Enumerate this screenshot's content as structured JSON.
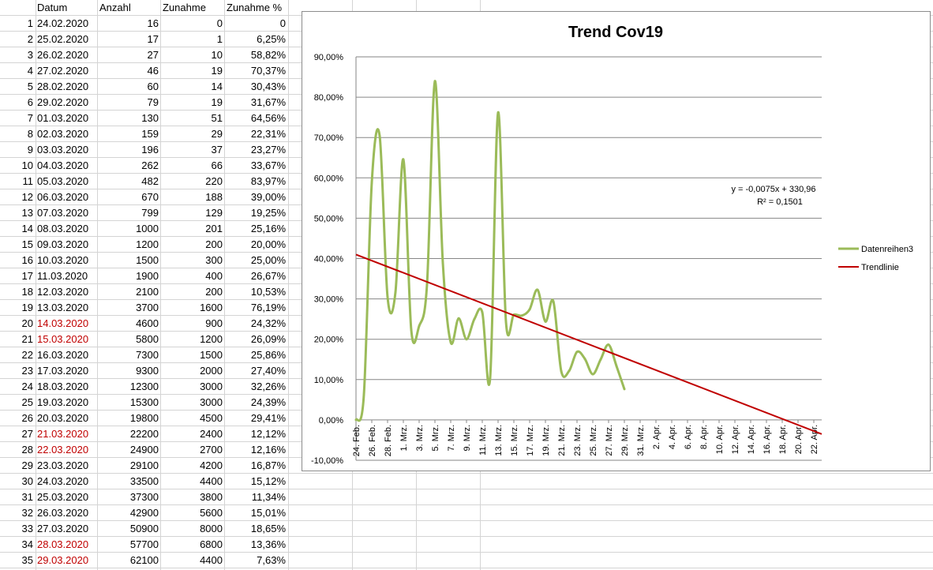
{
  "sheet": {
    "headers": [
      "Datum",
      "Anzahl",
      "Zunahme",
      "Zunahme %"
    ],
    "rows": [
      {
        "n": "1",
        "date": "24.02.2020",
        "count": "16",
        "inc": "0",
        "pct": "0",
        "weekend": false
      },
      {
        "n": "2",
        "date": "25.02.2020",
        "count": "17",
        "inc": "1",
        "pct": "6,25%",
        "weekend": false
      },
      {
        "n": "3",
        "date": "26.02.2020",
        "count": "27",
        "inc": "10",
        "pct": "58,82%",
        "weekend": false
      },
      {
        "n": "4",
        "date": "27.02.2020",
        "count": "46",
        "inc": "19",
        "pct": "70,37%",
        "weekend": false
      },
      {
        "n": "5",
        "date": "28.02.2020",
        "count": "60",
        "inc": "14",
        "pct": "30,43%",
        "weekend": false
      },
      {
        "n": "6",
        "date": "29.02.2020",
        "count": "79",
        "inc": "19",
        "pct": "31,67%",
        "weekend": false
      },
      {
        "n": "7",
        "date": "01.03.2020",
        "count": "130",
        "inc": "51",
        "pct": "64,56%",
        "weekend": false
      },
      {
        "n": "8",
        "date": "02.03.2020",
        "count": "159",
        "inc": "29",
        "pct": "22,31%",
        "weekend": false
      },
      {
        "n": "9",
        "date": "03.03.2020",
        "count": "196",
        "inc": "37",
        "pct": "23,27%",
        "weekend": false
      },
      {
        "n": "10",
        "date": "04.03.2020",
        "count": "262",
        "inc": "66",
        "pct": "33,67%",
        "weekend": false
      },
      {
        "n": "11",
        "date": "05.03.2020",
        "count": "482",
        "inc": "220",
        "pct": "83,97%",
        "weekend": false
      },
      {
        "n": "12",
        "date": "06.03.2020",
        "count": "670",
        "inc": "188",
        "pct": "39,00%",
        "weekend": false
      },
      {
        "n": "13",
        "date": "07.03.2020",
        "count": "799",
        "inc": "129",
        "pct": "19,25%",
        "weekend": false
      },
      {
        "n": "14",
        "date": "08.03.2020",
        "count": "1000",
        "inc": "201",
        "pct": "25,16%",
        "weekend": false
      },
      {
        "n": "15",
        "date": "09.03.2020",
        "count": "1200",
        "inc": "200",
        "pct": "20,00%",
        "weekend": false
      },
      {
        "n": "16",
        "date": "10.03.2020",
        "count": "1500",
        "inc": "300",
        "pct": "25,00%",
        "weekend": false
      },
      {
        "n": "17",
        "date": "11.03.2020",
        "count": "1900",
        "inc": "400",
        "pct": "26,67%",
        "weekend": false
      },
      {
        "n": "18",
        "date": "12.03.2020",
        "count": "2100",
        "inc": "200",
        "pct": "10,53%",
        "weekend": false
      },
      {
        "n": "19",
        "date": "13.03.2020",
        "count": "3700",
        "inc": "1600",
        "pct": "76,19%",
        "weekend": false
      },
      {
        "n": "20",
        "date": "14.03.2020",
        "count": "4600",
        "inc": "900",
        "pct": "24,32%",
        "weekend": true
      },
      {
        "n": "21",
        "date": "15.03.2020",
        "count": "5800",
        "inc": "1200",
        "pct": "26,09%",
        "weekend": true
      },
      {
        "n": "22",
        "date": "16.03.2020",
        "count": "7300",
        "inc": "1500",
        "pct": "25,86%",
        "weekend": false
      },
      {
        "n": "23",
        "date": "17.03.2020",
        "count": "9300",
        "inc": "2000",
        "pct": "27,40%",
        "weekend": false
      },
      {
        "n": "24",
        "date": "18.03.2020",
        "count": "12300",
        "inc": "3000",
        "pct": "32,26%",
        "weekend": false
      },
      {
        "n": "25",
        "date": "19.03.2020",
        "count": "15300",
        "inc": "3000",
        "pct": "24,39%",
        "weekend": false
      },
      {
        "n": "26",
        "date": "20.03.2020",
        "count": "19800",
        "inc": "4500",
        "pct": "29,41%",
        "weekend": false
      },
      {
        "n": "27",
        "date": "21.03.2020",
        "count": "22200",
        "inc": "2400",
        "pct": "12,12%",
        "weekend": true
      },
      {
        "n": "28",
        "date": "22.03.2020",
        "count": "24900",
        "inc": "2700",
        "pct": "12,16%",
        "weekend": true
      },
      {
        "n": "29",
        "date": "23.03.2020",
        "count": "29100",
        "inc": "4200",
        "pct": "16,87%",
        "weekend": false
      },
      {
        "n": "30",
        "date": "24.03.2020",
        "count": "33500",
        "inc": "4400",
        "pct": "15,12%",
        "weekend": false
      },
      {
        "n": "31",
        "date": "25.03.2020",
        "count": "37300",
        "inc": "3800",
        "pct": "11,34%",
        "weekend": false
      },
      {
        "n": "32",
        "date": "26.03.2020",
        "count": "42900",
        "inc": "5600",
        "pct": "15,01%",
        "weekend": false
      },
      {
        "n": "33",
        "date": "27.03.2020",
        "count": "50900",
        "inc": "8000",
        "pct": "18,65%",
        "weekend": false
      },
      {
        "n": "34",
        "date": "28.03.2020",
        "count": "57700",
        "inc": "6800",
        "pct": "13,36%",
        "weekend": true
      },
      {
        "n": "35",
        "date": "29.03.2020",
        "count": "62100",
        "inc": "4400",
        "pct": "7,63%",
        "weekend": true
      }
    ]
  },
  "colors": {
    "series": "#9bbb59",
    "trend": "#c00000",
    "weekend_text": "#c00000",
    "gridline": "#868686"
  },
  "chart_data": {
    "type": "line",
    "title": "Trend Cov19",
    "ylim": [
      -0.1,
      0.9
    ],
    "y_ticks": [
      "-10,00%",
      "0,00%",
      "10,00%",
      "20,00%",
      "30,00%",
      "40,00%",
      "50,00%",
      "60,00%",
      "70,00%",
      "80,00%",
      "90,00%"
    ],
    "x_ticks": [
      "24. Feb.",
      "26. Feb.",
      "28. Feb.",
      "1. Mrz.",
      "3. Mrz.",
      "5. Mrz.",
      "7. Mrz.",
      "9. Mrz.",
      "11. Mrz.",
      "13. Mrz.",
      "15. Mrz.",
      "17. Mrz.",
      "19. Mrz.",
      "21. Mrz.",
      "23. Mrz.",
      "25. Mrz.",
      "27. Mrz.",
      "29. Mrz.",
      "31. Mrz.",
      "2. Apr.",
      "4. Apr.",
      "6. Apr.",
      "8. Apr.",
      "10. Apr.",
      "12. Apr.",
      "14. Apr.",
      "16. Apr.",
      "18. Apr.",
      "20. Apr.",
      "22. Apr."
    ],
    "x_range": [
      "24.02.2020",
      "23.04.2020"
    ],
    "grid": true,
    "legend_position": "right",
    "series": [
      {
        "name": "Datenreihen3",
        "x": [
          "24.02.2020",
          "25.02.2020",
          "26.02.2020",
          "27.02.2020",
          "28.02.2020",
          "29.02.2020",
          "01.03.2020",
          "02.03.2020",
          "03.03.2020",
          "04.03.2020",
          "05.03.2020",
          "06.03.2020",
          "07.03.2020",
          "08.03.2020",
          "09.03.2020",
          "10.03.2020",
          "11.03.2020",
          "12.03.2020",
          "13.03.2020",
          "14.03.2020",
          "15.03.2020",
          "16.03.2020",
          "17.03.2020",
          "18.03.2020",
          "19.03.2020",
          "20.03.2020",
          "21.03.2020",
          "22.03.2020",
          "23.03.2020",
          "24.03.2020",
          "25.03.2020",
          "26.03.2020",
          "27.03.2020",
          "28.03.2020",
          "29.03.2020"
        ],
        "values": [
          0,
          0.0625,
          0.5882,
          0.7037,
          0.3043,
          0.3167,
          0.6456,
          0.2231,
          0.2327,
          0.3367,
          0.8397,
          0.39,
          0.1925,
          0.2516,
          0.2,
          0.25,
          0.2667,
          0.1053,
          0.7619,
          0.2432,
          0.2609,
          0.2586,
          0.274,
          0.3226,
          0.2439,
          0.2941,
          0.1212,
          0.1216,
          0.1687,
          0.1512,
          0.1134,
          0.1501,
          0.1865,
          0.1336,
          0.0763
        ]
      },
      {
        "name": "Trendlinie",
        "x": [
          "24.02.2020",
          "23.04.2020"
        ],
        "values": [
          0.41,
          -0.035
        ]
      }
    ],
    "annotations": [
      "y = -0,0075x + 330,96",
      "R² = 0,1501"
    ]
  }
}
